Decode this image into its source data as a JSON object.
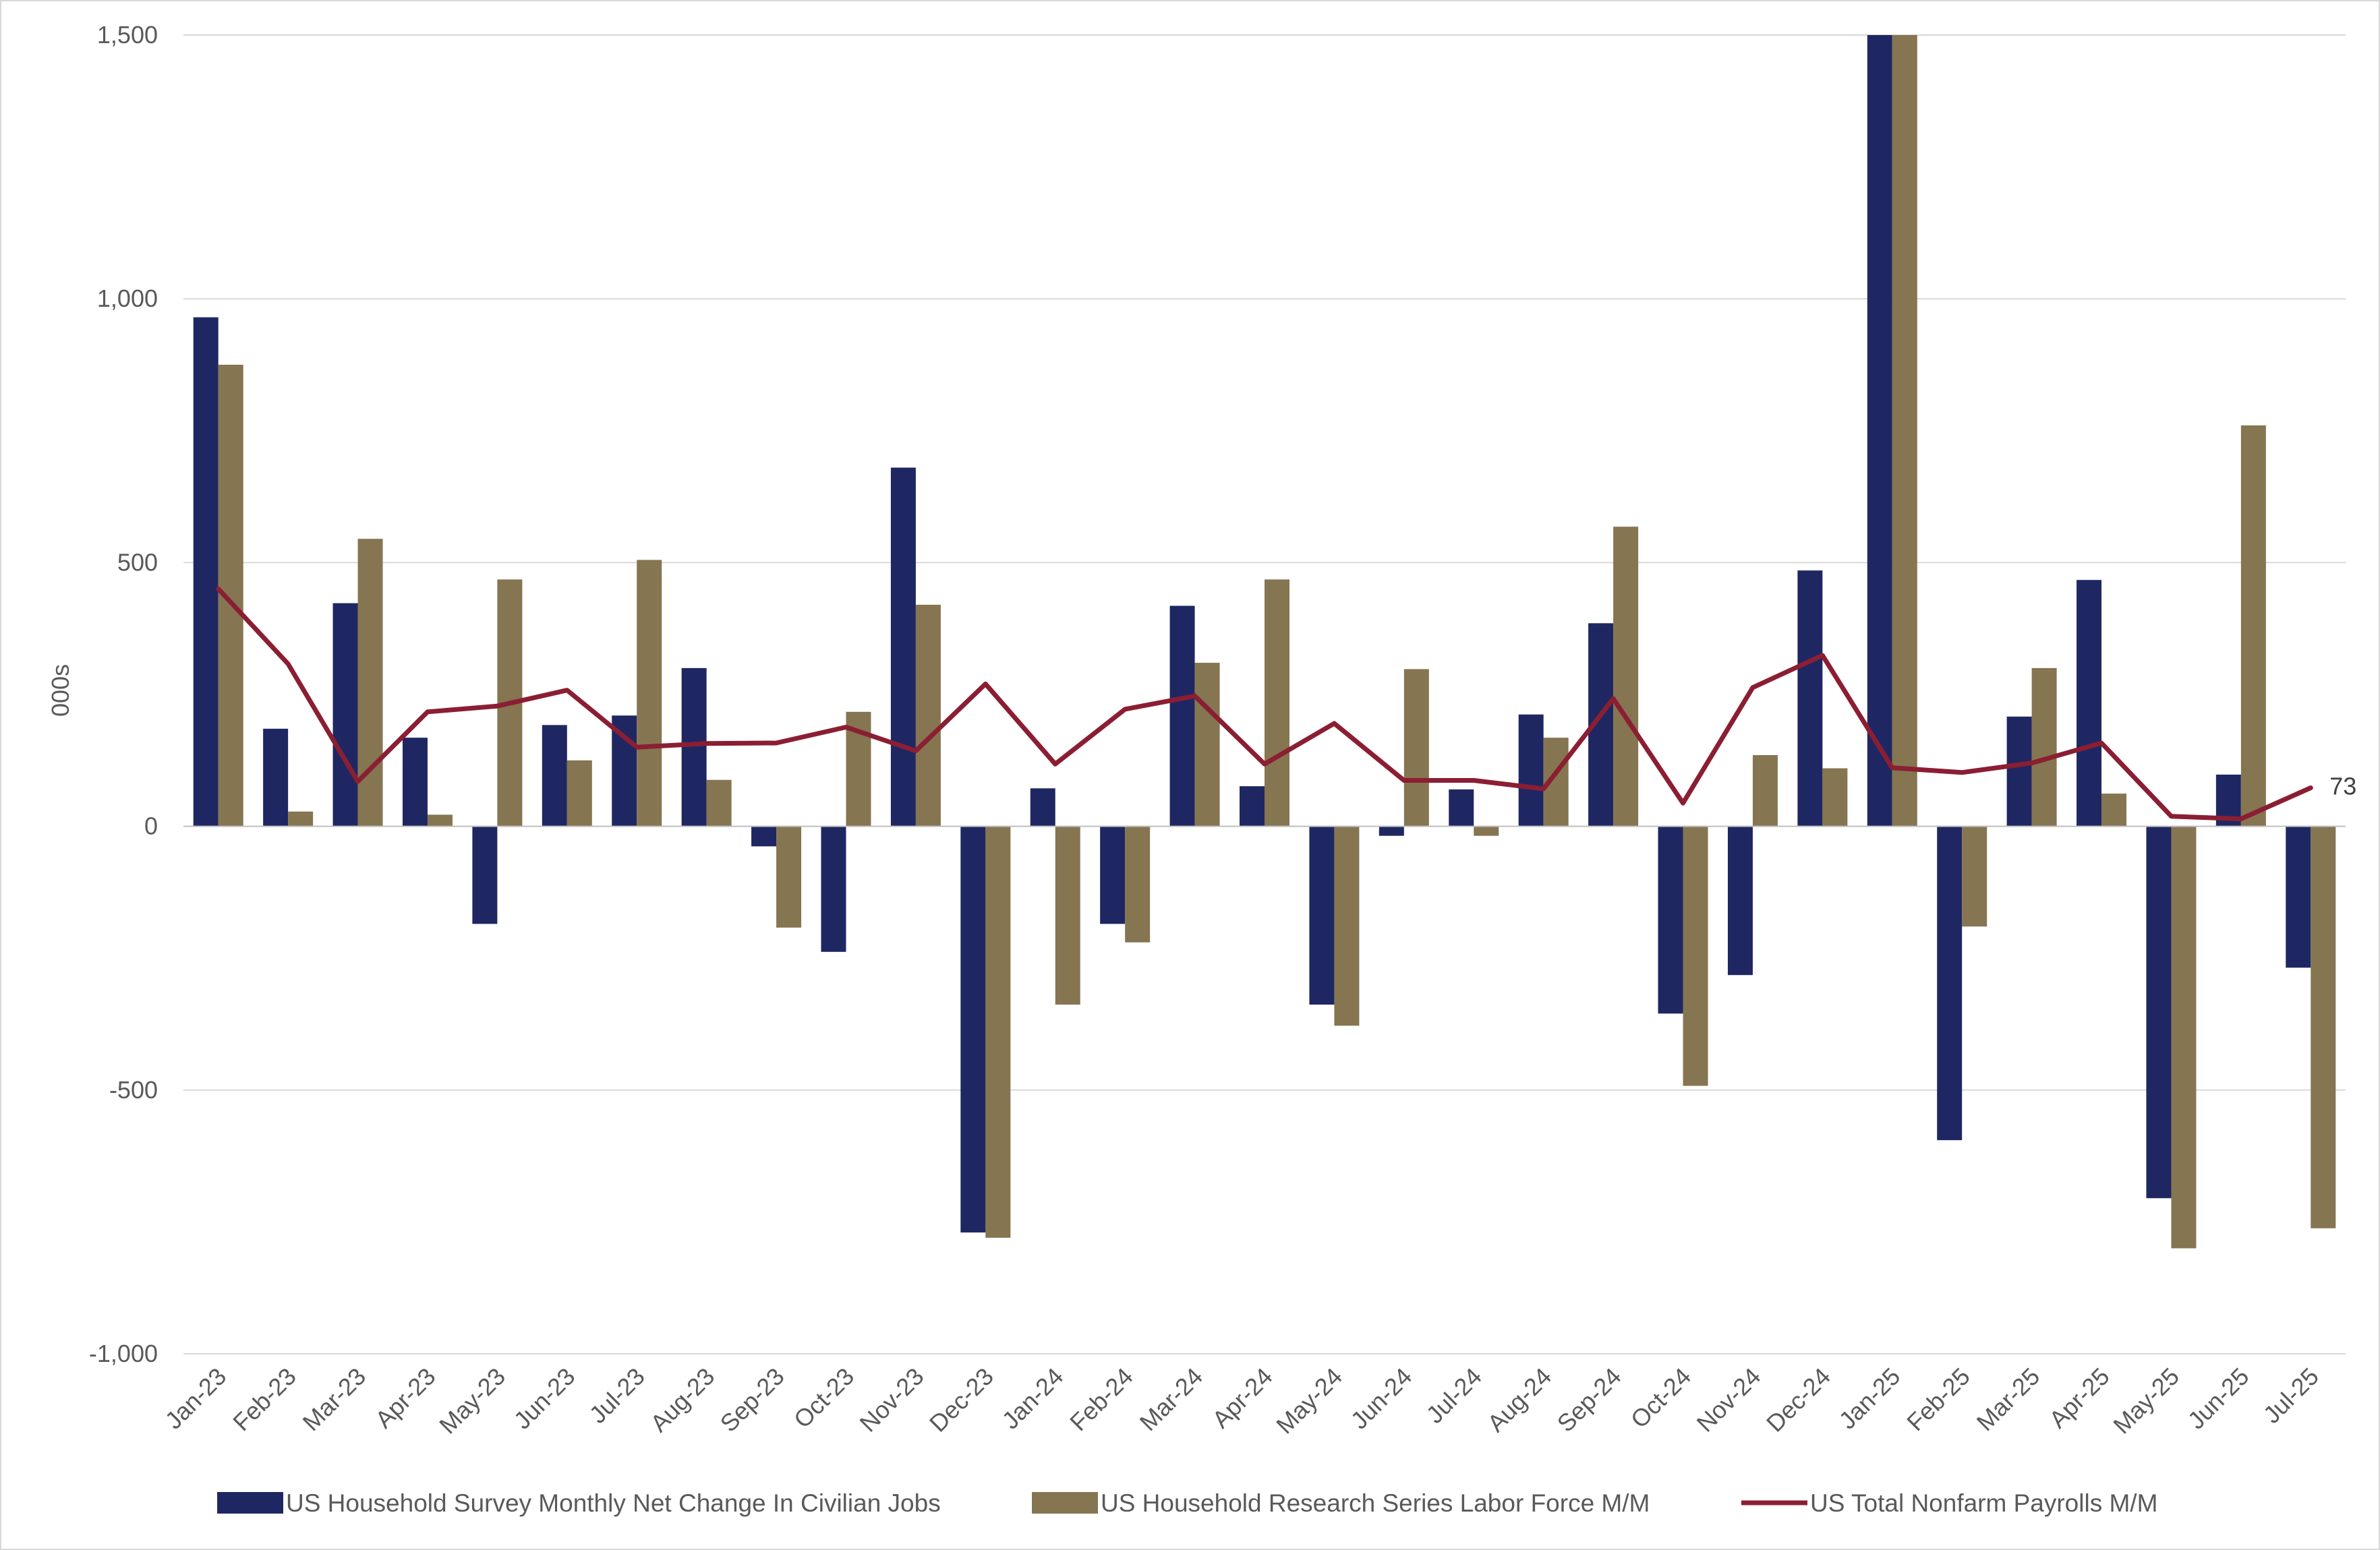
{
  "colors": {
    "household_jobs": "#1f2762",
    "research_labor_force": "#857551",
    "nonfarm_payrolls": "#8b1e32",
    "gridline": "#d9d9d9",
    "text": "#595959"
  },
  "chart_data": {
    "type": "bar",
    "title": "",
    "xlabel": "",
    "ylabel": "000s",
    "ylim": [
      -1000,
      1500
    ],
    "yticks": [
      -1000,
      -500,
      0,
      500,
      1000,
      1500
    ],
    "ytick_labels": [
      "-1,000",
      "-500",
      "0",
      "500",
      "1,000",
      "1,500"
    ],
    "grid": true,
    "legend_position": "bottom",
    "categories": [
      "Jan-23",
      "Feb-23",
      "Mar-23",
      "Apr-23",
      "May-23",
      "Jun-23",
      "Jul-23",
      "Aug-23",
      "Sep-23",
      "Oct-23",
      "Nov-23",
      "Dec-23",
      "Jan-24",
      "Feb-24",
      "Mar-24",
      "Apr-24",
      "May-24",
      "Jun-24",
      "Jul-24",
      "Aug-24",
      "Sep-24",
      "Oct-24",
      "Nov-24",
      "Dec-24",
      "Jan-25",
      "Feb-25",
      "Mar-25",
      "Apr-25",
      "May-25",
      "Jun-25",
      "Jul-25"
    ],
    "series": [
      {
        "name": "US Household Survey Monthly Net Change In Civilian Jobs",
        "kind": "bar",
        "color_key": "household_jobs",
        "values": [
          965,
          185,
          423,
          168,
          -185,
          192,
          210,
          300,
          -38,
          -238,
          680,
          -770,
          72,
          -185,
          418,
          76,
          -338,
          -18,
          70,
          212,
          385,
          -355,
          -282,
          485,
          1500,
          -595,
          208,
          467,
          -705,
          98,
          -268
        ]
      },
      {
        "name": "US Household Research Series Labor Force M/M",
        "kind": "bar",
        "color_key": "research_labor_force",
        "values": [
          875,
          28,
          545,
          22,
          468,
          125,
          505,
          88,
          -192,
          217,
          420,
          -780,
          -338,
          -220,
          310,
          468,
          -378,
          298,
          -18,
          168,
          568,
          -492,
          135,
          110,
          1500,
          -190,
          300,
          62,
          -800,
          760,
          -762
        ]
      },
      {
        "name": "US Total Nonfarm Payrolls M/M",
        "kind": "line",
        "color_key": "nonfarm_payrolls",
        "values": [
          450,
          308,
          85,
          217,
          228,
          258,
          150,
          157,
          158,
          188,
          143,
          270,
          118,
          222,
          247,
          118,
          195,
          87,
          87,
          71,
          242,
          44,
          263,
          324,
          111,
          102,
          120,
          158,
          19,
          14,
          73
        ],
        "last_value_label": "73"
      }
    ]
  }
}
